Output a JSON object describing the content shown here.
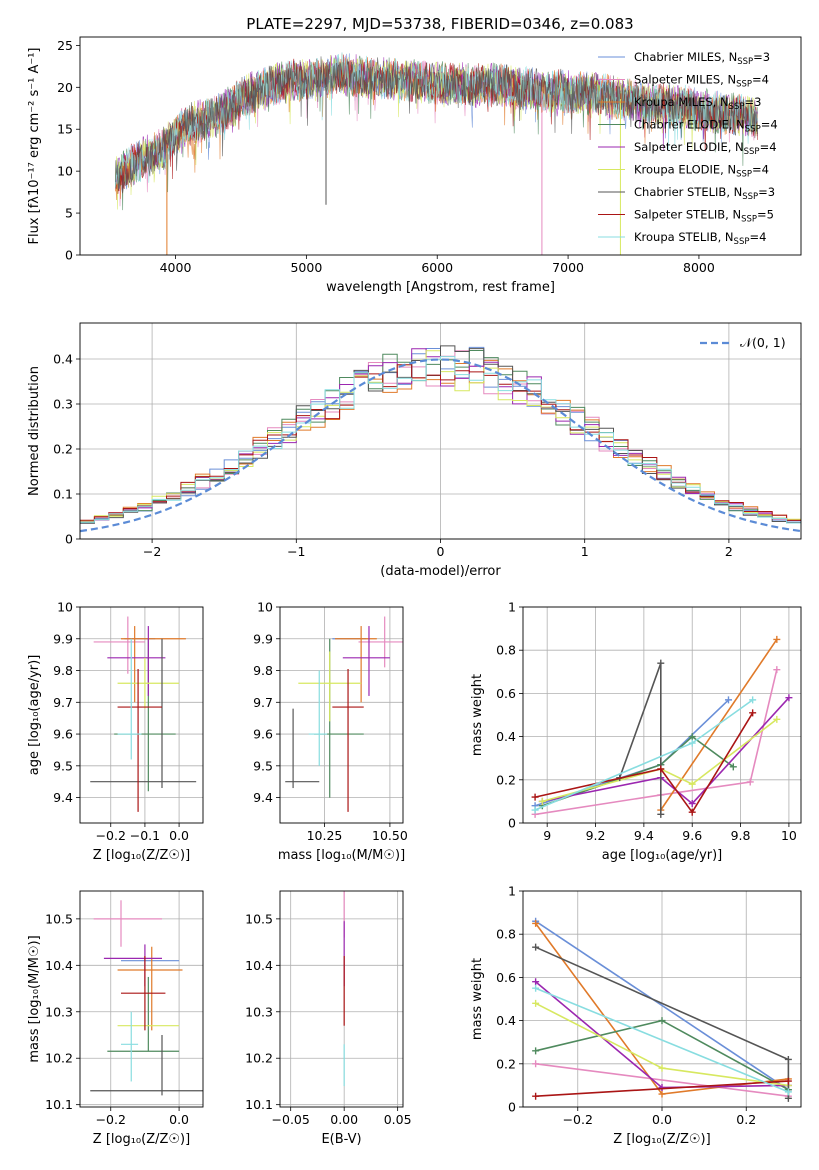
{
  "figure": {
    "title": "PLATE=2297, MJD=53738, FIBERID=0346, z=0.083"
  },
  "models": [
    {
      "name": "Chabrier MILES",
      "nssp": "3",
      "color": "#6a8fd8"
    },
    {
      "name": "Salpeter MILES",
      "nssp": "4",
      "color": "#e58abf"
    },
    {
      "name": "Kroupa MILES",
      "nssp": "3",
      "color": "#e07a2a"
    },
    {
      "name": "Chabrier ELODIE",
      "nssp": "4",
      "color": "#4f8a5e"
    },
    {
      "name": "Salpeter ELODIE",
      "nssp": "4",
      "color": "#9b27b0"
    },
    {
      "name": "Kroupa ELODIE",
      "nssp": "4",
      "color": "#d7e860"
    },
    {
      "name": "Chabrier STELIB",
      "nssp": "3",
      "color": "#555555"
    },
    {
      "name": "Salpeter STELIB",
      "nssp": "5",
      "color": "#aa1515"
    },
    {
      "name": "Kroupa STELIB",
      "nssp": "4",
      "color": "#88dde0"
    }
  ],
  "chart_data": [
    {
      "id": "spectrum",
      "type": "line",
      "xlabel": "wavelength [Angstrom, rest frame]",
      "ylabel": "Flux [fλ10⁻¹⁷ erg cm⁻² s⁻¹ A⁻¹]",
      "xlim": [
        3270,
        8780
      ],
      "ylim": [
        0,
        26
      ],
      "xticks": [
        4000,
        5000,
        6000,
        7000,
        8000
      ],
      "yticks": [
        0,
        5,
        10,
        15,
        20,
        25
      ],
      "legend_position": "top-right",
      "continuum": {
        "x": [
          3540,
          3600,
          3700,
          3800,
          3900,
          4000,
          4100,
          4200,
          4300,
          4400,
          4500,
          4600,
          4700,
          4800,
          4900,
          5000,
          5100,
          5200,
          5300,
          5400,
          5500,
          5600,
          5700,
          5800,
          5900,
          6000,
          6100,
          6200,
          6300,
          6400,
          6500,
          6600,
          6700,
          6800,
          6900,
          7000,
          7100,
          7200,
          7300,
          7400,
          7500,
          7600,
          7700,
          7800,
          7900,
          8000,
          8100,
          8200,
          8300,
          8400,
          8450
        ],
        "y": [
          9,
          10,
          11,
          12,
          12.5,
          14.5,
          15.5,
          16,
          16.5,
          17.5,
          18.5,
          19.5,
          20,
          20.5,
          20.8,
          21,
          21,
          21.5,
          21.5,
          21.3,
          21,
          21,
          20.8,
          20.8,
          20.5,
          20.5,
          20.3,
          20.5,
          20.2,
          20.3,
          20.3,
          20,
          19.8,
          19.5,
          19.6,
          19.5,
          19.3,
          19.3,
          19,
          18.6,
          18.3,
          18,
          18,
          17.9,
          17.7,
          17.3,
          17,
          17,
          16.8,
          16.5,
          16
        ]
      },
      "absorption_features": [
        {
          "x": 3934,
          "y": 0
        },
        {
          "x": 5150,
          "y": 6
        },
        {
          "x": 6800,
          "y": 0
        },
        {
          "x": 7400,
          "y": 0
        }
      ]
    },
    {
      "id": "residuals",
      "type": "histogram",
      "xlabel": "(data-model)/error",
      "ylabel": "Normed distribution",
      "xlim": [
        -2.5,
        2.5
      ],
      "ylim": [
        0,
        0.48
      ],
      "xticks": [
        -2,
        -1,
        0,
        1,
        2
      ],
      "yticks": [
        0.0,
        0.1,
        0.2,
        0.3,
        0.4
      ],
      "bin_width": 0.1,
      "reference_curve": {
        "label": "𝒩(0, 1)",
        "mean": 0,
        "sigma": 1,
        "color": "#5b8bd6"
      },
      "legend_position": "top-right"
    },
    {
      "id": "age_vs_Z",
      "type": "errorbar",
      "xlabel": "Z [log₁₀(Z/Z☉)]",
      "ylabel": "age  [log₁₀(age/yr)]",
      "xlim": [
        -0.29,
        0.07
      ],
      "ylim": [
        9.32,
        10.0
      ],
      "xticks": [
        -0.2,
        -0.1,
        0.0
      ],
      "xtick_labels": [
        "−0.2",
        "−0.1",
        "0.0"
      ],
      "yticks": [
        9.4,
        9.5,
        9.6,
        9.7,
        9.8,
        9.9,
        10.0
      ],
      "points": [
        {
          "model": 0,
          "x": -0.07,
          "xerr": [
            0.09,
            0.0
          ],
          "y": 9.9,
          "yerr": [
            0.0,
            0.0
          ]
        },
        {
          "model": 1,
          "x": -0.15,
          "xerr": [
            0.1,
            0.05
          ],
          "y": 9.89,
          "yerr": [
            0.1,
            0.08
          ]
        },
        {
          "model": 2,
          "x": -0.13,
          "xerr": [
            0.04,
            0.15
          ],
          "y": 9.9,
          "yerr": [
            0.2,
            0.04
          ]
        },
        {
          "model": 3,
          "x": -0.09,
          "xerr": [
            0.1,
            0.08
          ],
          "y": 9.6,
          "yerr": [
            0.18,
            0.3
          ]
        },
        {
          "model": 4,
          "x": -0.09,
          "xerr": [
            0.12,
            0.05
          ],
          "y": 9.84,
          "yerr": [
            0.12,
            0.1
          ]
        },
        {
          "model": 5,
          "x": -0.1,
          "xerr": [
            0.08,
            0.1
          ],
          "y": 9.76,
          "yerr": [
            0.08,
            0.08
          ]
        },
        {
          "model": 6,
          "x": -0.05,
          "xerr": [
            0.21,
            0.1
          ],
          "y": 9.45,
          "yerr": [
            0.02,
            0.45
          ]
        },
        {
          "model": 7,
          "x": -0.12,
          "xerr": [
            0.06,
            0.07
          ],
          "y": 9.685,
          "yerr": [
            0.33,
            0.12
          ]
        },
        {
          "model": 8,
          "x": -0.14,
          "xerr": [
            0.04,
            0.03
          ],
          "y": 9.6,
          "yerr": [
            0.08,
            0.3
          ]
        }
      ]
    },
    {
      "id": "age_vs_mass",
      "type": "errorbar",
      "xlabel": "mass [log₁₀(M/M☉)]",
      "ylabel": "",
      "xlim": [
        10.08,
        10.55
      ],
      "ylim": [
        9.32,
        10.0
      ],
      "xticks": [
        10.25,
        10.5
      ],
      "xtick_labels": [
        "10.25",
        "10.50"
      ],
      "yticks": [
        9.4,
        9.5,
        9.6,
        9.7,
        9.8,
        9.9,
        10.0
      ],
      "points": [
        {
          "model": 0,
          "x": 10.38,
          "xerr": [
            0.1,
            0.03
          ],
          "y": 9.9,
          "yerr": [
            0.0,
            0.0
          ]
        },
        {
          "model": 1,
          "x": 10.48,
          "xerr": [
            0.1,
            0.07
          ],
          "y": 9.89,
          "yerr": [
            0.08,
            0.08
          ]
        },
        {
          "model": 2,
          "x": 10.39,
          "xerr": [
            0.1,
            0.06
          ],
          "y": 9.9,
          "yerr": [
            0.2,
            0.04
          ]
        },
        {
          "model": 3,
          "x": 10.27,
          "xerr": [
            0.06,
            0.13
          ],
          "y": 9.6,
          "yerr": [
            0.2,
            0.3
          ]
        },
        {
          "model": 4,
          "x": 10.42,
          "xerr": [
            0.1,
            0.08
          ],
          "y": 9.84,
          "yerr": [
            0.12,
            0.1
          ]
        },
        {
          "model": 5,
          "x": 10.27,
          "xerr": [
            0.12,
            0.12
          ],
          "y": 9.76,
          "yerr": [
            0.12,
            0.1
          ]
        },
        {
          "model": 6,
          "x": 10.13,
          "xerr": [
            0.03,
            0.1
          ],
          "y": 9.45,
          "yerr": [
            0.02,
            0.23
          ]
        },
        {
          "model": 7,
          "x": 10.34,
          "xerr": [
            0.06,
            0.06
          ],
          "y": 9.685,
          "yerr": [
            0.33,
            0.12
          ]
        },
        {
          "model": 8,
          "x": 10.23,
          "xerr": [
            0.04,
            0.03
          ],
          "y": 9.6,
          "yerr": [
            0.1,
            0.2
          ]
        }
      ]
    },
    {
      "id": "weight_vs_age",
      "type": "line",
      "xlabel": "age  [log₁₀(age/yr)]",
      "ylabel": "mass weight",
      "xlim": [
        8.9,
        10.05
      ],
      "ylim": [
        0,
        1
      ],
      "xticks": [
        9.0,
        9.2,
        9.4,
        9.6,
        9.8,
        10.0
      ],
      "yticks": [
        0.0,
        0.2,
        0.4,
        0.6,
        0.8,
        1.0
      ],
      "series": [
        {
          "model": 0,
          "x": [
            8.95,
            9.47,
            9.75
          ],
          "y": [
            0.08,
            0.27,
            0.57
          ]
        },
        {
          "model": 1,
          "x": [
            8.95,
            9.47,
            9.84,
            9.95
          ],
          "y": [
            0.04,
            0.13,
            0.19,
            0.71
          ]
        },
        {
          "model": 2,
          "x": [
            9.47,
            9.95
          ],
          "y": [
            0.06,
            0.85
          ]
        },
        {
          "model": 3,
          "x": [
            8.98,
            9.47,
            9.6,
            9.77
          ],
          "y": [
            0.08,
            0.27,
            0.4,
            0.26
          ]
        },
        {
          "model": 4,
          "x": [
            8.98,
            9.47,
            9.6,
            10.0
          ],
          "y": [
            0.1,
            0.21,
            0.09,
            0.58
          ]
        },
        {
          "model": 5,
          "x": [
            8.98,
            9.47,
            9.6,
            9.95
          ],
          "y": [
            0.1,
            0.25,
            0.18,
            0.48
          ]
        },
        {
          "model": 6,
          "x": [
            9.3,
            9.47,
            9.47
          ],
          "y": [
            0.21,
            0.74,
            0.04
          ]
        },
        {
          "model": 7,
          "x": [
            8.95,
            9.47,
            9.6,
            9.85
          ],
          "y": [
            0.12,
            0.25,
            0.05,
            0.51
          ]
        },
        {
          "model": 8,
          "x": [
            8.95,
            9.6,
            9.85
          ],
          "y": [
            0.06,
            0.37,
            0.57
          ]
        }
      ]
    },
    {
      "id": "mass_vs_Z",
      "type": "errorbar",
      "xlabel": "Z [log₁₀(Z/Z☉)]",
      "ylabel": "mass [log₁₀(M/M☉)]",
      "xlim": [
        -0.29,
        0.07
      ],
      "ylim": [
        10.095,
        10.56
      ],
      "xticks": [
        -0.2,
        0.0
      ],
      "xtick_labels": [
        "−0.2",
        "0.0"
      ],
      "yticks": [
        10.1,
        10.2,
        10.3,
        10.4,
        10.5
      ],
      "points": [
        {
          "model": 0,
          "x": -0.07,
          "xerr": [
            0.1,
            0.07
          ],
          "y": 10.41,
          "yerr": [
            0.0,
            0.0
          ]
        },
        {
          "model": 1,
          "x": -0.17,
          "xerr": [
            0.08,
            0.12
          ],
          "y": 10.5,
          "yerr": [
            0.06,
            0.04
          ]
        },
        {
          "model": 2,
          "x": -0.08,
          "xerr": [
            0.1,
            0.09
          ],
          "y": 10.39,
          "yerr": [
            0.13,
            0.05
          ]
        },
        {
          "model": 3,
          "x": -0.09,
          "xerr": [
            0.12,
            0.09
          ],
          "y": 10.215,
          "yerr": [
            0.0,
            0.16
          ]
        },
        {
          "model": 4,
          "x": -0.1,
          "xerr": [
            0.12,
            0.05
          ],
          "y": 10.415,
          "yerr": [
            0.06,
            0.03
          ]
        },
        {
          "model": 5,
          "x": -0.07,
          "xerr": [
            0.11,
            0.07
          ],
          "y": 10.27,
          "yerr": [
            0.0,
            0.0
          ]
        },
        {
          "model": 6,
          "x": -0.05,
          "xerr": [
            0.21,
            0.12
          ],
          "y": 10.13,
          "yerr": [
            0.01,
            0.12
          ]
        },
        {
          "model": 7,
          "x": -0.1,
          "xerr": [
            0.07,
            0.06
          ],
          "y": 10.34,
          "yerr": [
            0.08,
            0.08
          ]
        },
        {
          "model": 8,
          "x": -0.14,
          "xerr": [
            0.03,
            0.02
          ],
          "y": 10.23,
          "yerr": [
            0.08,
            0.07
          ]
        }
      ]
    },
    {
      "id": "mass_vs_ebv",
      "type": "errorbar",
      "xlabel": "E(B-V)",
      "ylabel": "",
      "xlim": [
        -0.06,
        0.055
      ],
      "ylim": [
        10.095,
        10.56
      ],
      "xticks": [
        -0.05,
        0.0,
        0.05
      ],
      "xtick_labels": [
        "−0.05",
        "0.00",
        "0.05"
      ],
      "yticks": [
        10.1,
        10.2,
        10.3,
        10.4,
        10.5
      ],
      "points": [
        {
          "model": 1,
          "x": 0,
          "xerr": [
            0,
            0
          ],
          "y": 10.5,
          "yerr": [
            0.04,
            0.06
          ]
        },
        {
          "model": 4,
          "x": 0,
          "xerr": [
            0,
            0
          ],
          "y": 10.415,
          "yerr": [
            0.06,
            0.08
          ]
        },
        {
          "model": 7,
          "x": 0,
          "xerr": [
            0,
            0
          ],
          "y": 10.34,
          "yerr": [
            0.07,
            0.08
          ]
        },
        {
          "model": 8,
          "x": 0,
          "xerr": [
            0,
            0
          ],
          "y": 10.23,
          "yerr": [
            0.09,
            0.0
          ]
        }
      ]
    },
    {
      "id": "weight_vs_Z",
      "type": "line",
      "xlabel": "Z [log₁₀(Z/Z☉)]",
      "ylabel": "mass weight",
      "xlim": [
        -0.33,
        0.33
      ],
      "ylim": [
        0,
        1
      ],
      "xticks": [
        -0.2,
        0.0,
        0.2
      ],
      "xtick_labels": [
        "−0.2",
        "0.0",
        "0.2"
      ],
      "yticks": [
        0.0,
        0.2,
        0.4,
        0.6,
        0.8,
        1.0
      ],
      "series": [
        {
          "model": 0,
          "x": [
            -0.3,
            0.3
          ],
          "y": [
            0.86,
            0.08
          ]
        },
        {
          "model": 1,
          "x": [
            -0.3,
            0.3
          ],
          "y": [
            0.2,
            0.05
          ]
        },
        {
          "model": 2,
          "x": [
            -0.3,
            0.0,
            0.3
          ],
          "y": [
            0.85,
            0.06,
            0.13
          ]
        },
        {
          "model": 3,
          "x": [
            -0.3,
            0.0,
            0.3
          ],
          "y": [
            0.26,
            0.4,
            0.08
          ]
        },
        {
          "model": 4,
          "x": [
            -0.3,
            0.0,
            0.3
          ],
          "y": [
            0.58,
            0.09,
            0.1
          ]
        },
        {
          "model": 5,
          "x": [
            -0.3,
            0.0,
            0.3
          ],
          "y": [
            0.48,
            0.18,
            0.1
          ]
        },
        {
          "model": 6,
          "x": [
            -0.3,
            0.3,
            0.3
          ],
          "y": [
            0.74,
            0.22,
            0.04
          ]
        },
        {
          "model": 7,
          "x": [
            -0.3,
            0.3
          ],
          "y": [
            0.05,
            0.12
          ]
        },
        {
          "model": 8,
          "x": [
            -0.3,
            0.3
          ],
          "y": [
            0.55,
            0.07
          ]
        }
      ]
    }
  ]
}
